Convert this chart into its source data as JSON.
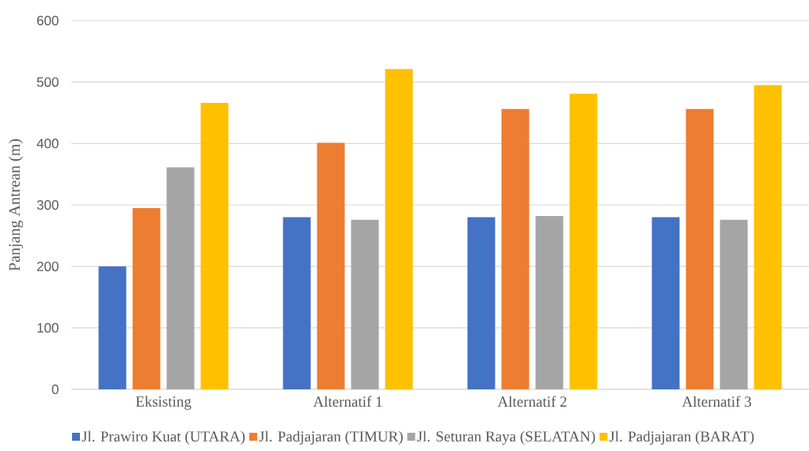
{
  "chart_data": {
    "type": "bar",
    "ylabel": "Panjang Antrean (m)",
    "categories": [
      "Eksisting",
      "Alternatif 1",
      "Alternatif 2",
      "Alternatif 3"
    ],
    "series": [
      {
        "name": "Jl. Prawiro Kuat (UTARA)",
        "color": "#4472c4",
        "values": [
          200,
          280,
          280,
          280
        ]
      },
      {
        "name": "Jl. Padjajaran (TIMUR)",
        "color": "#ed7d31",
        "values": [
          295,
          401,
          456,
          456
        ]
      },
      {
        "name": "Jl. Seturan Raya (SELATAN)",
        "color": "#a5a5a5",
        "values": [
          361,
          276,
          282,
          276
        ]
      },
      {
        "name": "Jl. Padjajaran (BARAT)",
        "color": "#ffc000",
        "values": [
          466,
          521,
          481,
          495
        ]
      }
    ],
    "ylim": [
      0,
      600
    ],
    "yticks": [
      0,
      100,
      200,
      300,
      400,
      500,
      600
    ],
    "grid": "y",
    "legend": "bottom"
  }
}
